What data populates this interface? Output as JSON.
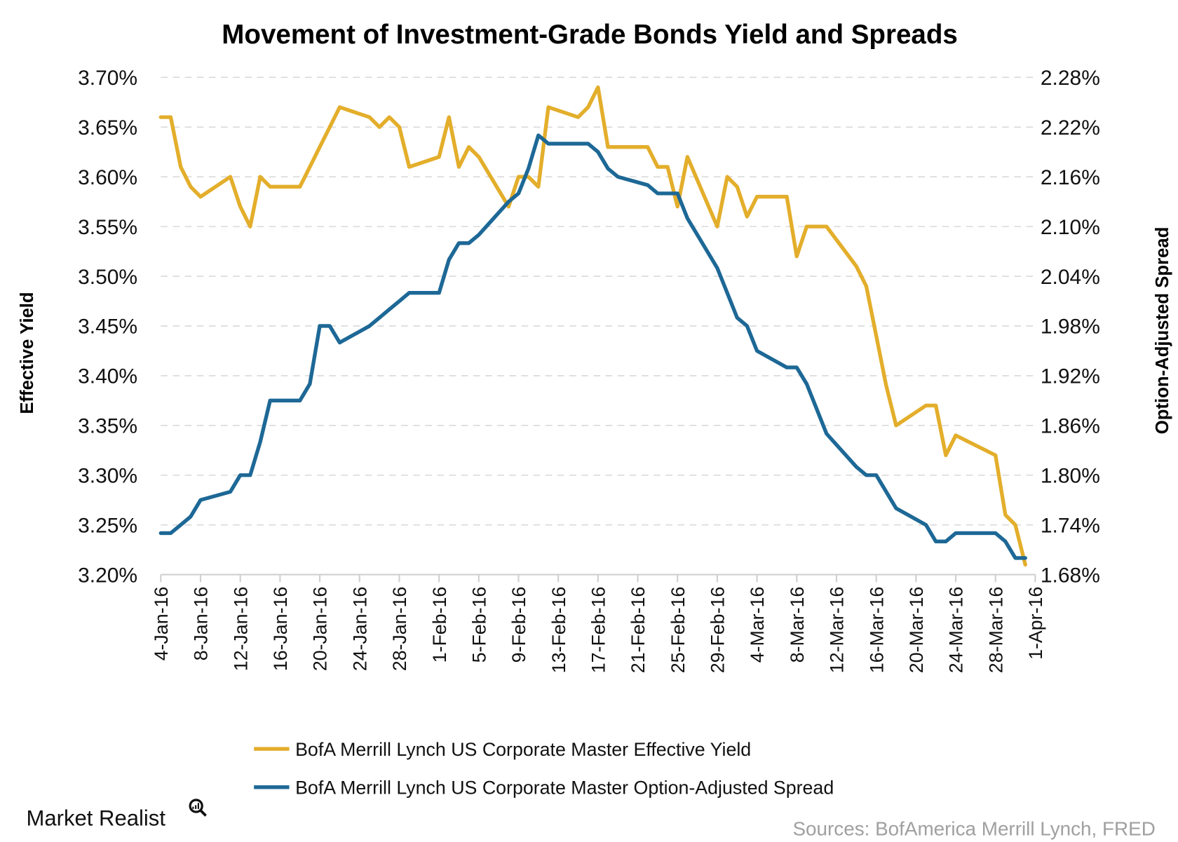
{
  "chart_data": {
    "type": "line",
    "title": "Movement of Investment-Grade Bonds Yield and Spreads",
    "ylabel_left": "Effective Yield",
    "ylabel_right": "Option-Adjusted Spread",
    "ylim_left": [
      3.2,
      3.7
    ],
    "ylim_right": [
      1.68,
      2.28
    ],
    "yticks_left": [
      "3.70%",
      "3.65%",
      "3.60%",
      "3.55%",
      "3.50%",
      "3.45%",
      "3.40%",
      "3.35%",
      "3.30%",
      "3.25%",
      "3.20%"
    ],
    "yticks_right": [
      "2.28%",
      "2.22%",
      "2.16%",
      "2.10%",
      "2.04%",
      "1.98%",
      "1.92%",
      "1.86%",
      "1.80%",
      "1.74%",
      "1.68%"
    ],
    "xlim": [
      "2016-01-04",
      "2016-04-01"
    ],
    "xticks": [
      "4-Jan-16",
      "8-Jan-16",
      "12-Jan-16",
      "16-Jan-16",
      "20-Jan-16",
      "24-Jan-16",
      "28-Jan-16",
      "1-Feb-16",
      "5-Feb-16",
      "9-Feb-16",
      "13-Feb-16",
      "17-Feb-16",
      "21-Feb-16",
      "25-Feb-16",
      "29-Feb-16",
      "4-Mar-16",
      "8-Mar-16",
      "12-Mar-16",
      "16-Mar-16",
      "20-Mar-16",
      "24-Mar-16",
      "28-Mar-16",
      "1-Apr-16"
    ],
    "grid": true,
    "legend_position": "bottom",
    "x": [
      "2016-01-04",
      "2016-01-05",
      "2016-01-06",
      "2016-01-07",
      "2016-01-08",
      "2016-01-11",
      "2016-01-12",
      "2016-01-13",
      "2016-01-14",
      "2016-01-15",
      "2016-01-18",
      "2016-01-19",
      "2016-01-20",
      "2016-01-21",
      "2016-01-22",
      "2016-01-25",
      "2016-01-26",
      "2016-01-27",
      "2016-01-28",
      "2016-01-29",
      "2016-02-01",
      "2016-02-02",
      "2016-02-03",
      "2016-02-04",
      "2016-02-05",
      "2016-02-08",
      "2016-02-09",
      "2016-02-10",
      "2016-02-11",
      "2016-02-12",
      "2016-02-15",
      "2016-02-16",
      "2016-02-17",
      "2016-02-18",
      "2016-02-19",
      "2016-02-22",
      "2016-02-23",
      "2016-02-24",
      "2016-02-25",
      "2016-02-26",
      "2016-02-29",
      "2016-03-01",
      "2016-03-02",
      "2016-03-03",
      "2016-03-04",
      "2016-03-07",
      "2016-03-08",
      "2016-03-09",
      "2016-03-10",
      "2016-03-11",
      "2016-03-14",
      "2016-03-15",
      "2016-03-16",
      "2016-03-17",
      "2016-03-18",
      "2016-03-21",
      "2016-03-22",
      "2016-03-23",
      "2016-03-24",
      "2016-03-25",
      "2016-03-28",
      "2016-03-29",
      "2016-03-30",
      "2016-03-31"
    ],
    "series": [
      {
        "name": "BofA Merrill Lynch US Corporate Master Effective Yield",
        "axis": "left",
        "color": "#E3AE2B",
        "values": [
          3.66,
          3.66,
          3.61,
          3.59,
          3.58,
          3.6,
          3.57,
          3.55,
          3.6,
          3.59,
          3.59,
          3.61,
          3.63,
          3.65,
          3.67,
          3.66,
          3.65,
          3.66,
          3.65,
          3.61,
          3.62,
          3.66,
          3.61,
          3.63,
          3.62,
          3.57,
          3.6,
          3.6,
          3.59,
          3.67,
          3.66,
          3.67,
          3.69,
          3.63,
          3.63,
          3.63,
          3.61,
          3.61,
          3.57,
          3.62,
          3.55,
          3.6,
          3.59,
          3.56,
          3.58,
          3.58,
          3.52,
          3.55,
          3.55,
          3.55,
          3.51,
          3.49,
          3.44,
          3.39,
          3.35,
          3.37,
          3.37,
          3.32,
          3.34,
          3.335,
          3.32,
          3.26,
          3.25,
          3.21
        ]
      },
      {
        "name": "BofA Merrill Lynch US Corporate Master Option-Adjusted Spread",
        "axis": "right",
        "color": "#1D6896",
        "values": [
          1.73,
          1.73,
          1.74,
          1.75,
          1.77,
          1.78,
          1.8,
          1.8,
          1.84,
          1.89,
          1.89,
          1.91,
          1.98,
          1.98,
          1.96,
          1.98,
          1.99,
          2.0,
          2.01,
          2.02,
          2.02,
          2.06,
          2.08,
          2.08,
          2.09,
          2.13,
          2.14,
          2.17,
          2.21,
          2.2,
          2.2,
          2.2,
          2.19,
          2.17,
          2.16,
          2.15,
          2.14,
          2.14,
          2.14,
          2.11,
          2.05,
          2.02,
          1.99,
          1.98,
          1.95,
          1.93,
          1.93,
          1.91,
          1.88,
          1.85,
          1.81,
          1.8,
          1.8,
          1.78,
          1.76,
          1.74,
          1.72,
          1.72,
          1.73,
          1.73,
          1.73,
          1.72,
          1.7,
          1.7
        ]
      }
    ]
  },
  "legend": [
    "BofA Merrill Lynch US Corporate Master Effective Yield",
    "BofA Merrill Lynch US Corporate Master Option-Adjusted Spread"
  ],
  "logo": "Market Realist",
  "source": "Sources: BofAmerica Merrill Lynch, FRED"
}
